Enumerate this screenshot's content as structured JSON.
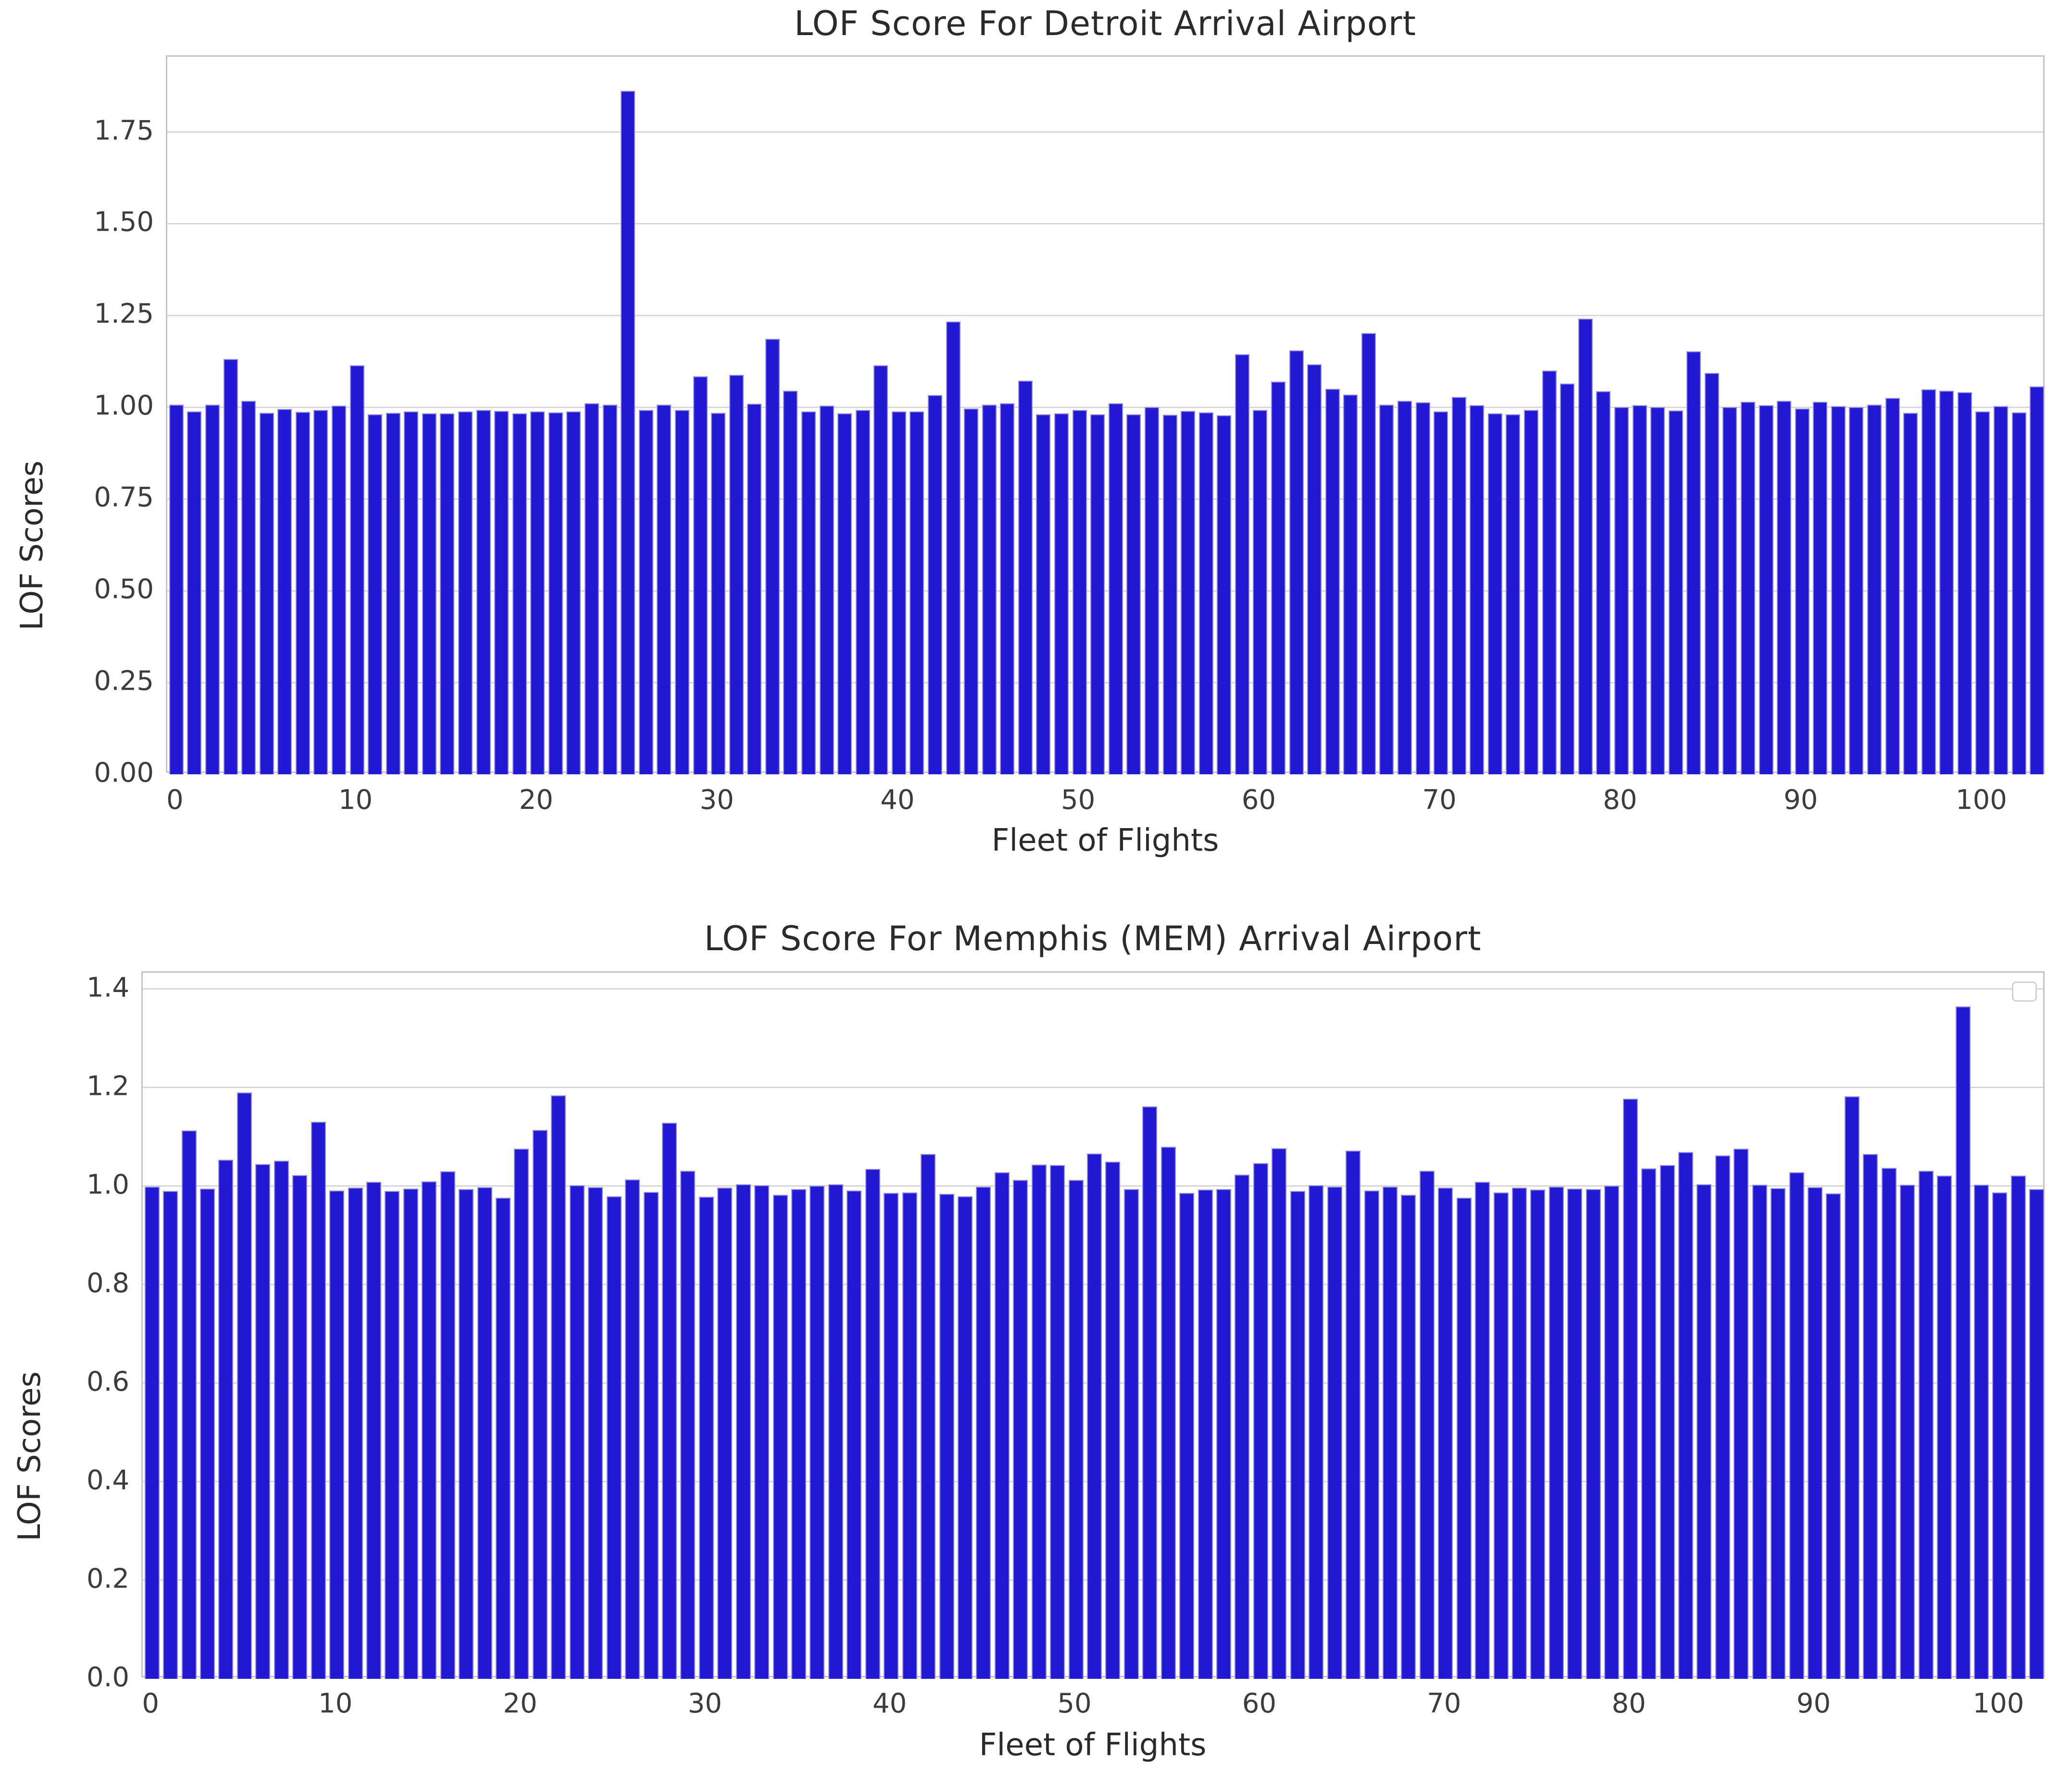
{
  "figure": {
    "background": "#ffffff",
    "bar_color": "#2318d4",
    "bar_edge_color": "#8f8ae6",
    "grid_color": "#d8d8d8",
    "axis_border_color": "#c4c4c4",
    "text_color": "#2b2b2b",
    "tick_color": "#3c3c3c"
  },
  "chart_data": [
    {
      "type": "bar",
      "title": "LOF Score For Detroit Arrival Airport",
      "xlabel": "Fleet of Flights",
      "ylabel": "LOF Scores",
      "ylim": [
        0,
        1.955
      ],
      "grid": true,
      "legend": "none",
      "ytick_labels": [
        "0.00",
        "0.25",
        "0.50",
        "0.75",
        "1.00",
        "1.25",
        "1.50",
        "1.75"
      ],
      "yticks": [
        0,
        0.25,
        0.5,
        0.75,
        1.0,
        1.25,
        1.5,
        1.75
      ],
      "xticks": [
        0,
        10,
        20,
        30,
        40,
        50,
        60,
        70,
        80,
        90,
        100
      ],
      "x": "flight index 0-103",
      "values": [
        1.007,
        0.989,
        1.007,
        1.132,
        1.018,
        0.985,
        0.995,
        0.987,
        0.992,
        1.004,
        1.114,
        0.981,
        0.985,
        0.989,
        0.984,
        0.984,
        0.989,
        0.993,
        0.99,
        0.983,
        0.989,
        0.986,
        0.989,
        1.011,
        1.007,
        1.862,
        0.993,
        1.007,
        0.992,
        1.084,
        0.985,
        1.088,
        1.01,
        1.186,
        1.045,
        0.989,
        1.004,
        0.983,
        0.992,
        1.114,
        0.989,
        0.988,
        1.033,
        1.234,
        0.997,
        1.007,
        1.011,
        1.073,
        0.981,
        0.983,
        0.993,
        0.981,
        1.011,
        0.981,
        1.0,
        0.98,
        0.99,
        0.986,
        0.978,
        1.145,
        0.992,
        1.07,
        1.155,
        1.117,
        1.05,
        1.035,
        1.202,
        1.007,
        1.018,
        1.013,
        0.989,
        1.028,
        1.006,
        0.984,
        0.981,
        0.993,
        1.1,
        1.064,
        1.242,
        1.044,
        1.0,
        1.006,
        1.0,
        0.991,
        1.152,
        1.094,
        1.0,
        1.015,
        1.006,
        1.017,
        0.997,
        1.015,
        1.003,
        1.0,
        1.007,
        1.025,
        0.985,
        1.049,
        1.045,
        1.041,
        0.988,
        1.003,
        0.986,
        1.057
      ]
    },
    {
      "type": "bar",
      "title": "LOF Score For Memphis (MEM) Arrival Airport",
      "xlabel": "Fleet of Flights",
      "ylabel": "LOF Scores",
      "ylim": [
        0,
        1.433
      ],
      "grid": true,
      "legend": "empty-box-top-right",
      "ytick_labels": [
        "0.0",
        "0.2",
        "0.4",
        "0.6",
        "0.8",
        "1.0",
        "1.2",
        "1.4"
      ],
      "yticks": [
        0,
        0.2,
        0.4,
        0.6,
        0.8,
        1.0,
        1.2,
        1.4
      ],
      "xticks": [
        0,
        10,
        20,
        30,
        40,
        50,
        60,
        70,
        80,
        90,
        100
      ],
      "x": "flight index 0-102",
      "values": [
        0.999,
        0.99,
        1.113,
        0.995,
        1.054,
        1.19,
        1.045,
        1.052,
        1.022,
        1.131,
        0.991,
        0.997,
        1.009,
        0.99,
        0.995,
        1.01,
        1.03,
        0.994,
        0.998,
        0.976,
        1.076,
        1.114,
        1.184,
        1.002,
        0.998,
        0.979,
        1.014,
        0.988,
        1.129,
        1.031,
        0.978,
        0.997,
        1.004,
        1.002,
        0.982,
        0.994,
        1.001,
        1.004,
        0.991,
        1.035,
        0.986,
        0.987,
        1.065,
        0.984,
        0.979,
        0.999,
        1.028,
        1.013,
        1.044,
        1.043,
        1.013,
        1.066,
        1.05,
        0.994,
        1.162,
        1.08,
        0.986,
        0.993,
        0.994,
        1.023,
        1.047,
        1.077,
        0.99,
        1.002,
        0.999,
        1.072,
        0.991,
        0.999,
        0.982,
        1.031,
        0.997,
        0.976,
        1.009,
        0.987,
        0.997,
        0.993,
        0.999,
        0.995,
        0.994,
        1.001,
        1.177,
        1.036,
        1.043,
        1.069,
        1.004,
        1.062,
        1.076,
        1.003,
        0.996,
        1.028,
        0.998,
        0.985,
        1.182,
        1.065,
        1.037,
        1.003,
        1.031,
        1.021,
        1.365,
        1.003,
        0.987,
        1.021,
        0.994
      ]
    }
  ]
}
